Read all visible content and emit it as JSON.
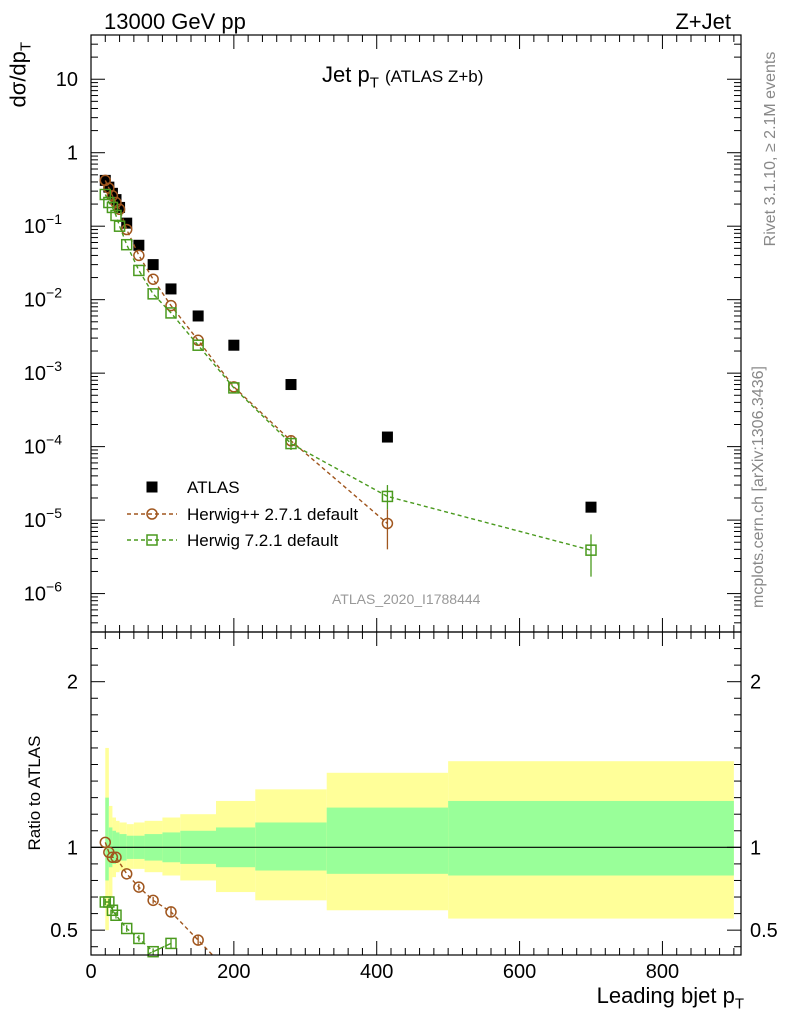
{
  "header": {
    "left": "13000 GeV pp",
    "right": "Z+Jet"
  },
  "side_text": {
    "rivet": "Rivet 3.1.10, ≥ 2.1M events",
    "mcplots": "mcplots.cern.ch [arXiv:1306.3436]"
  },
  "watermark": "ATLAS_2020_I1788444",
  "chart_data": [
    {
      "panel": "main",
      "type": "scatter",
      "title": {
        "main": "Jet p",
        "sub": "T",
        "suffix": "(ATLAS Z+b)"
      },
      "ylabel": {
        "main": "dσ/dp",
        "sub": "T"
      },
      "y_scale": "log",
      "xlim": [
        0,
        910
      ],
      "ylim": [
        3e-07,
        40
      ],
      "y_ticks": [
        {
          "value": 10,
          "label": "10",
          "exp": ""
        },
        {
          "value": 1,
          "label": "1",
          "exp": ""
        },
        {
          "value": 0.1,
          "label": "10",
          "exp": "−1"
        },
        {
          "value": 0.01,
          "label": "10",
          "exp": "−2"
        },
        {
          "value": 0.001,
          "label": "10",
          "exp": "−3"
        },
        {
          "value": 0.0001,
          "label": "10",
          "exp": "−4"
        },
        {
          "value": 1e-05,
          "label": "10",
          "exp": "−5"
        },
        {
          "value": 1e-06,
          "label": "10",
          "exp": "−6"
        }
      ],
      "legend_position": "bottom-left",
      "series": [
        {
          "name": "ATLAS",
          "color": "#000000",
          "marker": "filled-square",
          "x": [
            20,
            25,
            30,
            35,
            40,
            50,
            67,
            87,
            112,
            150,
            200,
            280,
            415,
            700
          ],
          "y": [
            0.42,
            0.34,
            0.28,
            0.23,
            0.18,
            0.11,
            0.055,
            0.03,
            0.014,
            0.006,
            0.0024,
            0.0007,
            0.000135,
            1.5e-05
          ]
        },
        {
          "name": "Herwig++ 2.7.1 default",
          "color": "#a0561e",
          "marker": "open-circle",
          "x": [
            20,
            25,
            30,
            35,
            40,
            50,
            67,
            87,
            112,
            150,
            200,
            280,
            415
          ],
          "y": [
            0.42,
            0.33,
            0.26,
            0.21,
            0.17,
            0.09,
            0.04,
            0.019,
            0.0083,
            0.0028,
            0.00065,
            0.00012,
            9e-06
          ],
          "err_lo": [
            0,
            0,
            0,
            0,
            0,
            0,
            0,
            0,
            0,
            0,
            0,
            2e-05,
            5e-06
          ],
          "err_hi": [
            0,
            0,
            0,
            0,
            0,
            0,
            0,
            0,
            0,
            0,
            0,
            2e-05,
            5e-06
          ]
        },
        {
          "name": "Herwig 7.2.1 default",
          "color": "#4a9a1e",
          "marker": "open-square",
          "x": [
            20,
            25,
            30,
            35,
            40,
            50,
            67,
            87,
            112,
            150,
            200,
            280,
            415,
            700
          ],
          "y": [
            0.27,
            0.21,
            0.18,
            0.14,
            0.1,
            0.056,
            0.025,
            0.012,
            0.0066,
            0.0024,
            0.00063,
            0.00011,
            2.1e-05,
            3.9e-06
          ],
          "err_lo": [
            0,
            0,
            0,
            0,
            0,
            0,
            0,
            0,
            0,
            0,
            0,
            2e-05,
            7e-06,
            2.2e-06
          ],
          "err_hi": [
            0,
            0,
            0,
            0,
            0,
            0,
            0,
            0,
            0,
            0,
            0,
            2e-05,
            9e-06,
            2.5e-06
          ]
        }
      ]
    },
    {
      "panel": "ratio",
      "type": "scatter",
      "ylabel": "Ratio to ATLAS",
      "xlabel": {
        "main": "Leading bjet p",
        "sub": "T"
      },
      "xlim": [
        0,
        910
      ],
      "ylim": [
        0.35,
        2.3
      ],
      "x_ticks": [
        0,
        200,
        400,
        600,
        800
      ],
      "y_ticks": [
        0.5,
        1,
        2
      ],
      "bands": {
        "edges": [
          20,
          25,
          30,
          35,
          40,
          50,
          60,
          75,
          100,
          125,
          175,
          230,
          330,
          500,
          900
        ],
        "inner_lo": [
          0.8,
          0.88,
          0.9,
          0.91,
          0.92,
          0.93,
          0.93,
          0.92,
          0.91,
          0.9,
          0.88,
          0.86,
          0.84,
          0.83
        ],
        "inner_hi": [
          1.3,
          1.12,
          1.1,
          1.09,
          1.08,
          1.07,
          1.07,
          1.08,
          1.09,
          1.1,
          1.12,
          1.15,
          1.24,
          1.28
        ],
        "outer_lo": [
          0.5,
          0.7,
          0.82,
          0.85,
          0.86,
          0.87,
          0.87,
          0.85,
          0.83,
          0.8,
          0.73,
          0.68,
          0.62,
          0.57
        ],
        "outer_hi": [
          1.6,
          1.25,
          1.18,
          1.16,
          1.15,
          1.14,
          1.15,
          1.16,
          1.18,
          1.2,
          1.28,
          1.35,
          1.45,
          1.52
        ],
        "inner_color": "#99ff99",
        "outer_color": "#ffff99"
      },
      "series": [
        {
          "name": "Herwig++ 2.7.1 default",
          "color": "#a0561e",
          "marker": "open-circle",
          "x": [
            20,
            25,
            30,
            35,
            50,
            67,
            87,
            112,
            150
          ],
          "y": [
            1.03,
            0.97,
            0.94,
            0.94,
            0.84,
            0.76,
            0.68,
            0.61,
            0.44
          ],
          "err": [
            0,
            0,
            0,
            0,
            0,
            0.02,
            0.02,
            0.03,
            0.03
          ]
        },
        {
          "name": "Herwig 7.2.1 default",
          "color": "#4a9a1e",
          "marker": "open-square",
          "x": [
            20,
            25,
            30,
            35,
            50,
            67,
            87,
            112
          ],
          "y": [
            0.67,
            0.67,
            0.62,
            0.59,
            0.51,
            0.45,
            0.37,
            0.42
          ],
          "err": [
            0.02,
            0.02,
            0.02,
            0.02,
            0.02,
            0.02,
            0.02,
            0.03
          ]
        }
      ]
    }
  ]
}
